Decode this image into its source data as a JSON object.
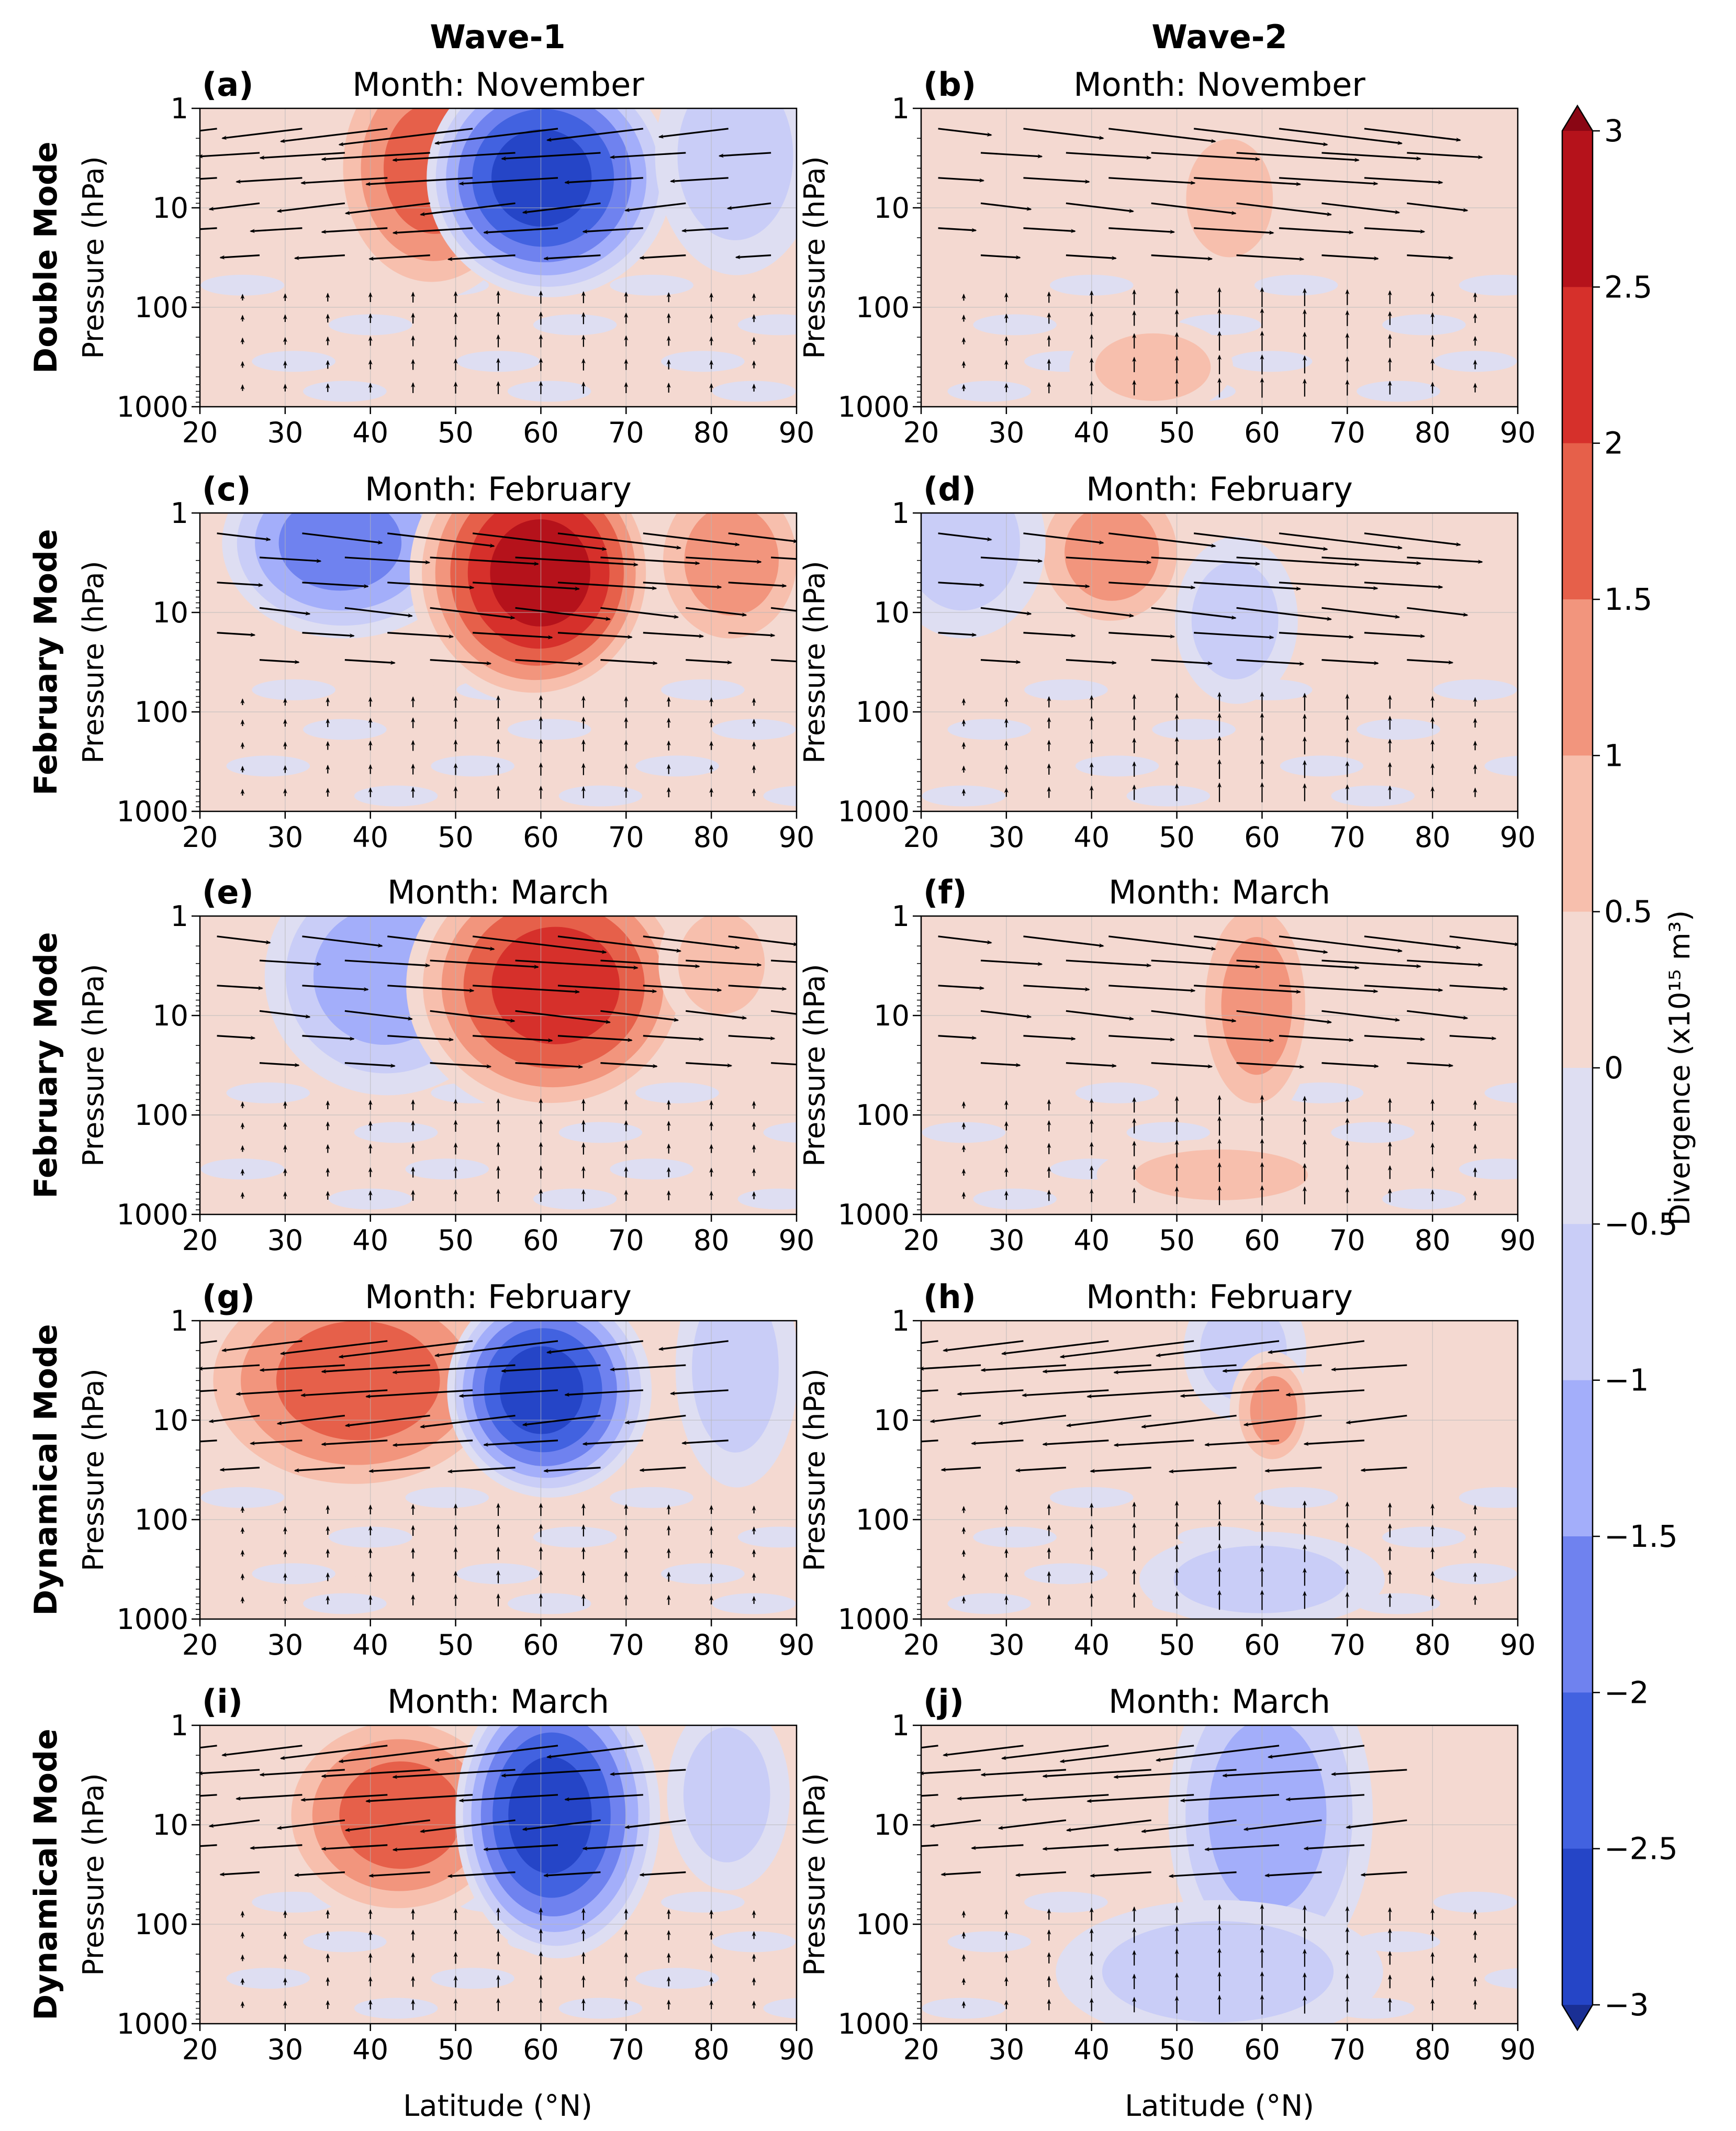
{
  "figure": {
    "column_titles": [
      "Wave-1",
      "Wave-2"
    ],
    "row_titles": [
      "Double Mode",
      "February Mode",
      "February Mode",
      "Dynamical Mode",
      "Dynamical Mode"
    ],
    "y_axis_label": "Pressure (hPa)",
    "x_axis_label": "Latitude (°N)",
    "colorbar_label": "Divergence (x10¹⁵ m³)"
  },
  "colors": {
    "neg": [
      "#1a2f94",
      "#2545c7",
      "#4262e0",
      "#6f82ef",
      "#a3aefa",
      "#c9cdf7",
      "#dedef2"
    ],
    "pos": [
      "#f4d9d1",
      "#f7bfad",
      "#f2957d",
      "#e6604a",
      "#d6302b",
      "#b5121b",
      "#8a0614"
    ]
  },
  "chart_data": {
    "type": "contourf-quiver",
    "xlim": [
      20,
      90
    ],
    "x_ticks": [
      20,
      30,
      40,
      50,
      60,
      70,
      80,
      90
    ],
    "ylim_hPa": [
      1000,
      1
    ],
    "y_scale": "log",
    "y_ticks": [
      1,
      10,
      100,
      1000
    ],
    "colorbar": {
      "levels": [
        -3,
        -2.5,
        -2,
        -1.5,
        -1,
        -0.5,
        0,
        0.5,
        1,
        1.5,
        2,
        2.5,
        3
      ],
      "tick_labels": [
        "3",
        "2.5",
        "2",
        "1.5",
        "1",
        "0.5",
        "0",
        "−0.5",
        "−1",
        "−1.5",
        "−2",
        "−2.5",
        "−3"
      ],
      "extend": "both"
    },
    "panels": [
      {
        "id": "a",
        "label": "(a)",
        "title": "Month: November",
        "wave": 1,
        "mode": "Double Mode",
        "blobs": [
          {
            "lat": 47,
            "p": 4,
            "amp": 1.6,
            "sx": 5,
            "sy": 0.55
          },
          {
            "lat": 61,
            "p": 5,
            "amp": -2.8,
            "sx": 6,
            "sy": 0.5
          },
          {
            "lat": 83,
            "p": 3,
            "amp": -0.9,
            "sx": 4,
            "sy": 0.5
          }
        ],
        "background": 0.25,
        "arrow_dir": "west",
        "arrow_region": [
          20,
          88
        ]
      },
      {
        "id": "b",
        "label": "(b)",
        "title": "Month: November",
        "wave": 2,
        "mode": "Double Mode",
        "blobs": [
          {
            "lat": 56,
            "p": 8,
            "amp": 0.6,
            "sx": 3,
            "sy": 0.35
          },
          {
            "lat": 47,
            "p": 400,
            "amp": 0.6,
            "sx": 4,
            "sy": 0.2
          }
        ],
        "background": 0.2,
        "arrow_dir": "east",
        "arrow_region": [
          20,
          80
        ]
      },
      {
        "id": "c",
        "label": "(c)",
        "title": "Month: February",
        "wave": 1,
        "mode": "February Mode",
        "blobs": [
          {
            "lat": 37,
            "p": 2,
            "amp": -1.8,
            "sx": 6,
            "sy": 0.4
          },
          {
            "lat": 59,
            "p": 4,
            "amp": 2.8,
            "sx": 6,
            "sy": 0.55
          },
          {
            "lat": 82,
            "p": 3,
            "amp": 1.1,
            "sx": 4,
            "sy": 0.4
          }
        ],
        "background": 0.2,
        "arrow_dir": "east",
        "arrow_region": [
          20,
          90
        ]
      },
      {
        "id": "d",
        "label": "(d)",
        "title": "Month: February",
        "wave": 2,
        "mode": "February Mode",
        "blobs": [
          {
            "lat": 42,
            "p": 2.5,
            "amp": 1.2,
            "sx": 4,
            "sy": 0.35
          },
          {
            "lat": 57,
            "p": 12,
            "amp": -0.9,
            "sx": 3,
            "sy": 0.35
          },
          {
            "lat": 25,
            "p": 2,
            "amp": -0.6,
            "sx": 4,
            "sy": 0.4
          }
        ],
        "background": 0.25,
        "arrow_dir": "east",
        "arrow_region": [
          20,
          80
        ]
      },
      {
        "id": "e",
        "label": "(e)",
        "title": "Month: March",
        "wave": 1,
        "mode": "February Mode",
        "blobs": [
          {
            "lat": 42,
            "p": 4,
            "amp": -1.0,
            "sx": 6,
            "sy": 0.5
          },
          {
            "lat": 61,
            "p": 5,
            "amp": 2.3,
            "sx": 7,
            "sy": 0.55
          },
          {
            "lat": 81,
            "p": 3,
            "amp": 0.9,
            "sx": 3,
            "sy": 0.3
          }
        ],
        "background": 0.2,
        "arrow_dir": "east",
        "arrow_region": [
          20,
          88
        ]
      },
      {
        "id": "f",
        "label": "(f)",
        "title": "Month: March",
        "wave": 2,
        "mode": "February Mode",
        "blobs": [
          {
            "lat": 59,
            "p": 8,
            "amp": 1.2,
            "sx": 3,
            "sy": 0.5
          },
          {
            "lat": 55,
            "p": 400,
            "amp": 0.7,
            "sx": 6,
            "sy": 0.15
          }
        ],
        "background": 0.2,
        "arrow_dir": "east",
        "arrow_region": [
          20,
          82
        ]
      },
      {
        "id": "g",
        "label": "(g)",
        "title": "Month: February",
        "wave": 1,
        "mode": "Dynamical Mode",
        "blobs": [
          {
            "lat": 38,
            "p": 4,
            "amp": 1.5,
            "sx": 8,
            "sy": 0.5
          },
          {
            "lat": 61,
            "p": 5,
            "amp": -2.8,
            "sx": 5,
            "sy": 0.45
          },
          {
            "lat": 83,
            "p": 3,
            "amp": -0.9,
            "sx": 3,
            "sy": 0.5
          }
        ],
        "background": 0.25,
        "arrow_dir": "west",
        "arrow_region": [
          20,
          82
        ]
      },
      {
        "id": "h",
        "label": "(h)",
        "title": "Month: February",
        "wave": 2,
        "mode": "Dynamical Mode",
        "blobs": [
          {
            "lat": 58,
            "p": 2,
            "amp": -0.8,
            "sx": 3,
            "sy": 0.3
          },
          {
            "lat": 61,
            "p": 8,
            "amp": 1.0,
            "sx": 2,
            "sy": 0.25
          },
          {
            "lat": 60,
            "p": 400,
            "amp": -0.8,
            "sx": 6,
            "sy": 0.2
          }
        ],
        "background": 0.25,
        "arrow_dir": "west",
        "arrow_region": [
          20,
          80
        ]
      },
      {
        "id": "i",
        "label": "(i)",
        "title": "Month: March",
        "wave": 1,
        "mode": "Dynamical Mode",
        "blobs": [
          {
            "lat": 43,
            "p": 8,
            "amp": 1.5,
            "sx": 6,
            "sy": 0.45
          },
          {
            "lat": 62,
            "p": 8,
            "amp": -2.5,
            "sx": 5,
            "sy": 0.6
          },
          {
            "lat": 82,
            "p": 5,
            "amp": -0.8,
            "sx": 3,
            "sy": 0.4
          }
        ],
        "background": 0.25,
        "arrow_dir": "west",
        "arrow_region": [
          20,
          80
        ]
      },
      {
        "id": "j",
        "label": "(j)",
        "title": "Month: March",
        "wave": 2,
        "mode": "Dynamical Mode",
        "blobs": [
          {
            "lat": 61,
            "p": 8,
            "amp": -1.0,
            "sx": 5,
            "sy": 0.7
          },
          {
            "lat": 55,
            "p": 300,
            "amp": -0.7,
            "sx": 8,
            "sy": 0.3
          }
        ],
        "background": 0.25,
        "arrow_dir": "west",
        "arrow_region": [
          20,
          80
        ]
      }
    ]
  }
}
